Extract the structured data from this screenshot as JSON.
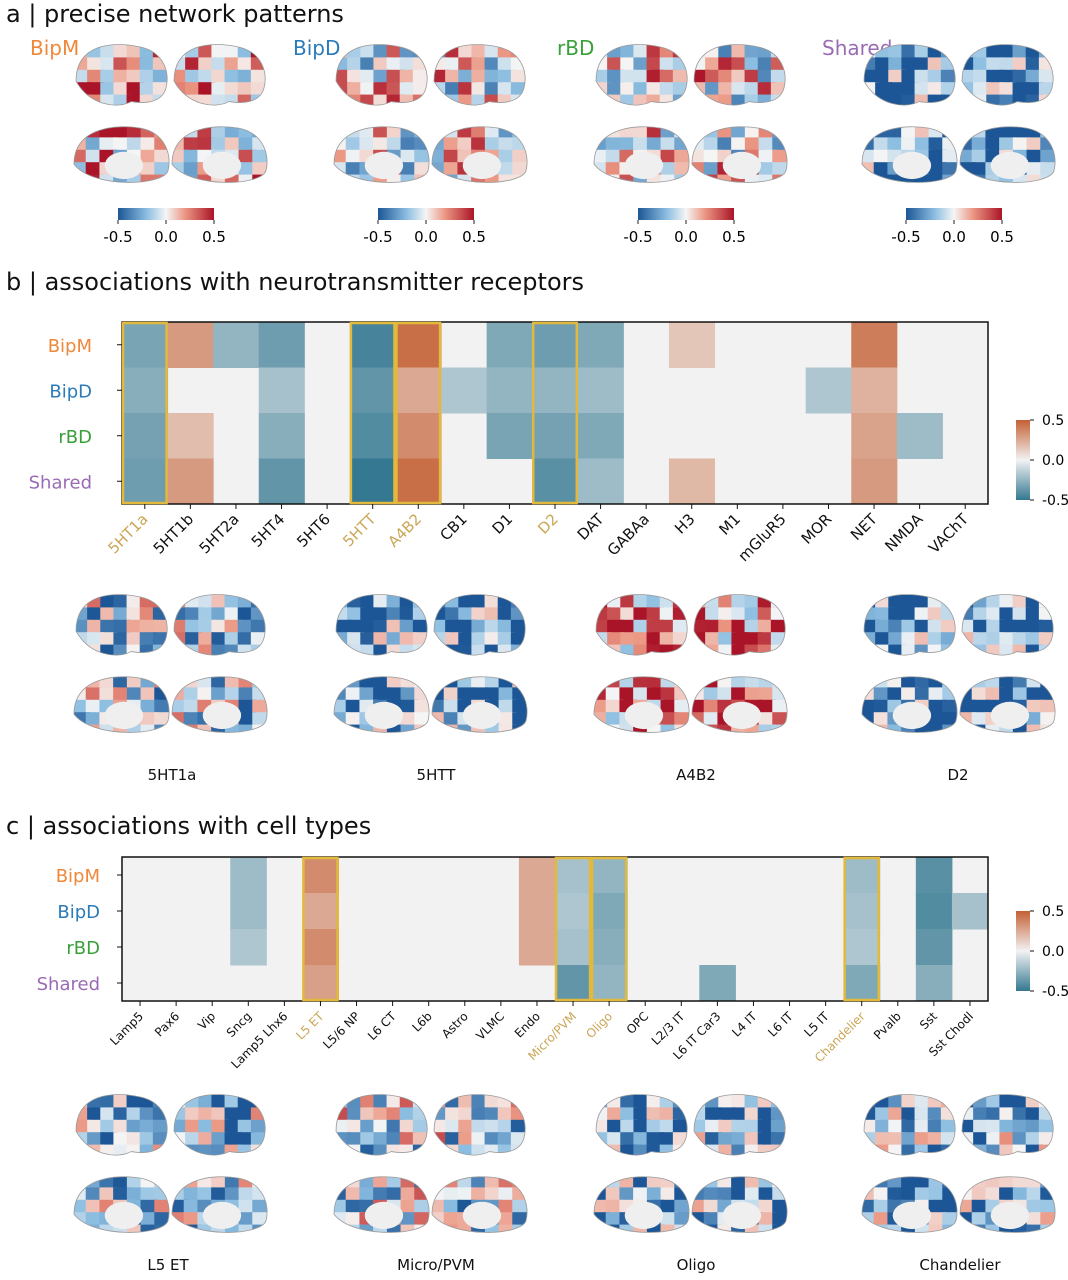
{
  "colors": {
    "BipM": "#f0883a",
    "BipD": "#2b7bb9",
    "rBD": "#3aa03a",
    "Shared": "#9a6bb5",
    "highlight": "#e2b93b",
    "highlight_text": "#caa656"
  },
  "panel_a": {
    "title": "a | precise network patterns",
    "groups": [
      {
        "label": "BipM",
        "cmap": {
          "min": "-0.5",
          "mid": "0.0",
          "max": "0.5"
        }
      },
      {
        "label": "BipD",
        "cmap": {
          "min": "-0.5",
          "mid": "0.0",
          "max": "0.5"
        }
      },
      {
        "label": "rBD",
        "cmap": {
          "min": "-0.5",
          "mid": "0.0",
          "max": "0.5"
        }
      },
      {
        "label": "Shared",
        "cmap": {
          "min": "-0.5",
          "mid": "0.0",
          "max": "0.5"
        }
      }
    ]
  },
  "panel_b": {
    "title": "b | associations with neurotransmitter receptors",
    "brain_captions": [
      "5HT1a",
      "5HTT",
      "A4B2",
      "D2"
    ]
  },
  "panel_c": {
    "title": "c | associations with cell types",
    "brain_captions": [
      "L5 ET",
      "Micro/PVM",
      "Oligo",
      "Chandelier"
    ]
  },
  "chart_data": [
    {
      "type": "heatmap",
      "title": "associations with neurotransmitter receptors",
      "rows": [
        "BipM",
        "BipD",
        "rBD",
        "Shared"
      ],
      "columns": [
        "5HT1a",
        "5HT1b",
        "5HT2a",
        "5HT4",
        "5HT6",
        "5HTT",
        "A4B2",
        "CB1",
        "D1",
        "D2",
        "DAT",
        "GABAa",
        "H3",
        "M1",
        "mGluR5",
        "MOR",
        "NET",
        "NMDA",
        "VAChT"
      ],
      "highlighted_columns": [
        "5HT1a",
        "5HTT",
        "A4B2",
        "D2"
      ],
      "values": [
        [
          -0.32,
          0.3,
          -0.25,
          -0.35,
          0,
          -0.45,
          0.45,
          0,
          -0.3,
          -0.35,
          -0.3,
          0,
          0.15,
          0,
          0,
          0,
          0.4,
          0,
          0
        ],
        [
          -0.28,
          0,
          0,
          -0.2,
          0,
          -0.38,
          0.25,
          -0.18,
          -0.25,
          -0.25,
          -0.22,
          0,
          0,
          0,
          0,
          -0.18,
          0.22,
          0,
          0
        ],
        [
          -0.33,
          0.18,
          0,
          -0.28,
          0,
          -0.42,
          0.35,
          0,
          -0.32,
          -0.33,
          -0.3,
          0,
          0,
          0,
          0,
          0,
          0.27,
          -0.22,
          0
        ],
        [
          -0.35,
          0.3,
          0,
          -0.38,
          0,
          -0.5,
          0.45,
          0,
          0,
          -0.4,
          -0.22,
          0,
          0.2,
          0,
          0,
          0,
          0.3,
          0,
          0
        ]
      ],
      "colorbar": {
        "ticks": [
          "0.5",
          "0.0",
          "-0.5"
        ],
        "range": [
          -0.5,
          0.5
        ]
      }
    },
    {
      "type": "heatmap",
      "title": "associations with cell types",
      "rows": [
        "BipM",
        "BipD",
        "rBD",
        "Shared"
      ],
      "columns": [
        "Lamp5",
        "Pax6",
        "Vip",
        "Sncg",
        "Lamp5 Lhx6",
        "L5 ET",
        "L5/6 NP",
        "L6 CT",
        "L6b",
        "Astro",
        "VLMC",
        "Endo",
        "Micro/PVM",
        "Oligo",
        "OPC",
        "L2/3 IT",
        "L6 IT Car3",
        "L4 IT",
        "L6 IT",
        "L5 IT",
        "Chandelier",
        "Pvalb",
        "Sst",
        "Sst Chodl"
      ],
      "highlighted_columns": [
        "L5 ET",
        "Micro/PVM",
        "Oligo",
        "Chandelier"
      ],
      "values": [
        [
          0,
          0,
          0,
          -0.22,
          0,
          0.35,
          0,
          0,
          0,
          0,
          0,
          0.25,
          -0.2,
          -0.25,
          0,
          0,
          0,
          0,
          0,
          0,
          -0.22,
          0,
          -0.4,
          0
        ],
        [
          0,
          0,
          0,
          -0.22,
          0,
          0.25,
          0,
          0,
          0,
          0,
          0,
          0.25,
          -0.18,
          -0.3,
          0,
          0,
          0,
          0,
          0,
          0,
          -0.2,
          0,
          -0.42,
          -0.2
        ],
        [
          0,
          0,
          0,
          -0.18,
          0,
          0.35,
          0,
          0,
          0,
          0,
          0,
          0.25,
          -0.2,
          -0.28,
          0,
          0,
          0,
          0,
          0,
          0,
          -0.18,
          0,
          -0.38,
          0
        ],
        [
          0,
          0,
          0,
          0,
          0,
          0.28,
          0,
          0,
          0,
          0,
          0,
          0,
          -0.38,
          -0.25,
          0,
          0,
          -0.3,
          0,
          0,
          0,
          -0.3,
          0,
          -0.28,
          0
        ]
      ],
      "colorbar": {
        "ticks": [
          "0.5",
          "0.0",
          "-0.5"
        ],
        "range": [
          -0.5,
          0.5
        ]
      }
    }
  ]
}
